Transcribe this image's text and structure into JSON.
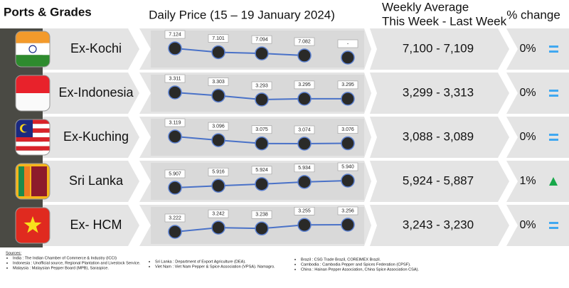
{
  "header": {
    "ports": "Ports & Grades",
    "daily": "Daily Price (15 – 19 January 2024)",
    "weekly_line1": "Weekly Average",
    "weekly_line2": "This Week - Last Week",
    "change": "% change"
  },
  "rows": [
    {
      "port": "Ex-Kochi",
      "flag": "india",
      "prices": [
        7.124,
        7.101,
        7.094,
        7.082,
        null
      ],
      "value_labels": [
        "7.124",
        "7.101",
        "7.094",
        "7.082",
        "-"
      ],
      "average": "7,100 - 7,109",
      "change": "0%",
      "trend": "equal"
    },
    {
      "port": "Ex-Indonesia",
      "flag": "indonesia",
      "prices": [
        3.311,
        3.303,
        3.293,
        3.295,
        3.295
      ],
      "average": "3,299 - 3,313",
      "change": "0%",
      "trend": "equal"
    },
    {
      "port": "Ex-Kuching",
      "flag": "malaysia",
      "prices": [
        3.119,
        3.096,
        3.075,
        3.074,
        3.076
      ],
      "average": "3,088 - 3,089",
      "change": "0%",
      "trend": "equal"
    },
    {
      "port": "Sri Lanka",
      "flag": "srilanka",
      "prices": [
        5.907,
        5.916,
        5.924,
        5.934,
        5.94
      ],
      "value_labels": [
        "5.907",
        "5.916",
        "5.924",
        "5.934",
        "5.940"
      ],
      "average": "5,924 - 5,887",
      "change": "1%",
      "trend": "up"
    },
    {
      "port": "Ex- HCM",
      "flag": "vietnam",
      "prices": [
        3.222,
        3.242,
        3.238,
        3.255,
        3.256
      ],
      "average": "3,243 - 3,230",
      "change": "0%",
      "trend": "equal"
    }
  ],
  "sources": {
    "title": "Sources:",
    "col1": [
      "India : The Indian Chamber of Commerce & Industry (ICCI)",
      "Indonesia : Unofficial source, Regional Plantation and Livestock Service.",
      "Malaysia : Malaysian Pepper Board (MPB), Saraspice."
    ],
    "col2": [
      "Sri Lanka : Department of Export Agriculture (DEA).",
      "Viet Nam : Viet Nam Pepper & Spice Association (VPSA). Namagro."
    ],
    "col3": [
      "Brazil : CSG Trade Brazil, COREIMEX Brazil.",
      "Cambodia : Cambodia Pepper and Spices Federation (CPSF).",
      "China : Hainan Pepper Association, China Spice Association CSA)."
    ]
  }
}
